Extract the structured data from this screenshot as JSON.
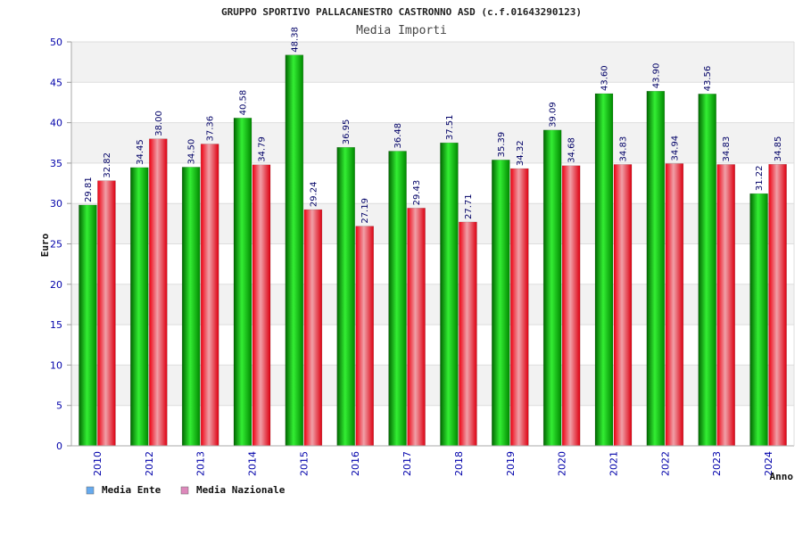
{
  "chart_data": {
    "type": "bar",
    "title": "GRUPPO SPORTIVO PALLACANESTRO CASTRONNO ASD (c.f.01643290123)",
    "subtitle": "Media Importi",
    "xlabel": "Anno",
    "ylabel": "Euro",
    "ylim": [
      0,
      50
    ],
    "yticks": [
      "0",
      "5",
      "10",
      "15",
      "20",
      "25",
      "30",
      "35",
      "40",
      "45",
      "50"
    ],
    "grid": true,
    "legend_position": "bottom-left",
    "categories": [
      "2010",
      "2012",
      "2013",
      "2014",
      "2015",
      "2016",
      "2017",
      "2018",
      "2019",
      "2020",
      "2021",
      "2022",
      "2023",
      "2024"
    ],
    "series": [
      {
        "name": "Media Ente",
        "color": "#00bb00",
        "legend_color": "#66aaee",
        "values": [
          29.81,
          34.45,
          34.5,
          40.58,
          48.38,
          36.95,
          36.48,
          37.51,
          35.39,
          39.09,
          43.6,
          43.9,
          43.56,
          31.22
        ],
        "labels": [
          "29.81",
          "34.45",
          "34.50",
          "40.58",
          "48.38",
          "36.95",
          "36.48",
          "37.51",
          "35.39",
          "39.09",
          "43.60",
          "43.90",
          "43.56",
          "31.22"
        ]
      },
      {
        "name": "Media Nazionale",
        "color": "#ee1122",
        "legend_color": "#dd88bb",
        "values": [
          32.82,
          38.0,
          37.36,
          34.79,
          29.24,
          27.19,
          29.43,
          27.71,
          34.32,
          34.68,
          34.83,
          34.94,
          34.83,
          34.85
        ],
        "labels": [
          "32.82",
          "38.00",
          "37.36",
          "34.79",
          "29.24",
          "27.19",
          "29.43",
          "27.71",
          "34.32",
          "34.68",
          "34.83",
          "34.94",
          "34.83",
          "34.85"
        ]
      }
    ]
  }
}
